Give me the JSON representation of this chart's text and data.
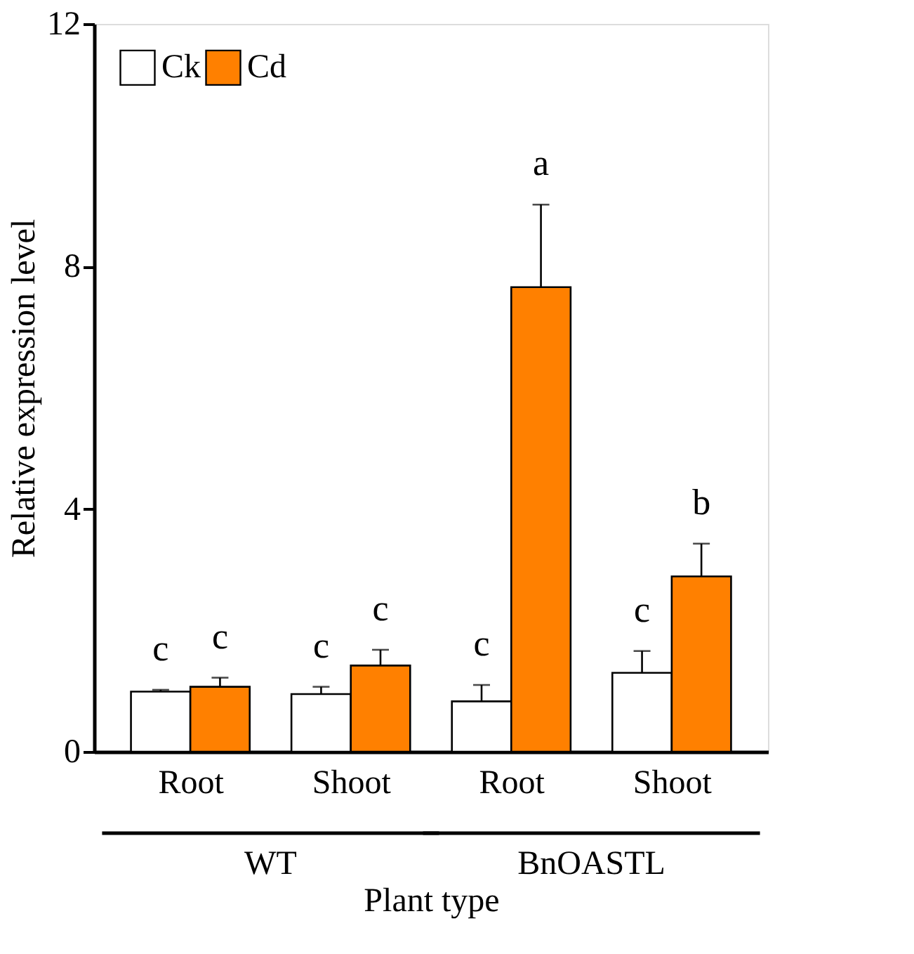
{
  "chart_data": {
    "type": "bar",
    "xlabel": "Plant type",
    "ylabel": "Relative expression level",
    "categories": [
      "Root",
      "Shoot",
      "Root",
      "Shoot"
    ],
    "series": [
      {
        "name": "Ck",
        "color": "#ffffff",
        "values": [
          0.99,
          0.95,
          0.83,
          1.3
        ],
        "errors": [
          0.03,
          0.12,
          0.27,
          0.36
        ]
      },
      {
        "name": "Cd",
        "color": "#ff8000",
        "values": [
          1.07,
          1.42,
          7.66,
          2.89
        ],
        "errors": [
          0.15,
          0.26,
          1.36,
          0.54
        ]
      }
    ],
    "annotations": [
      "c",
      "c",
      "c",
      "c",
      "c",
      "a",
      "c",
      "b",
      "WT",
      "BnOASTL"
    ],
    "ylim": [
      0,
      12
    ],
    "yticks": [
      0,
      4,
      8,
      12
    ],
    "grid": false,
    "legend": "top left"
  }
}
